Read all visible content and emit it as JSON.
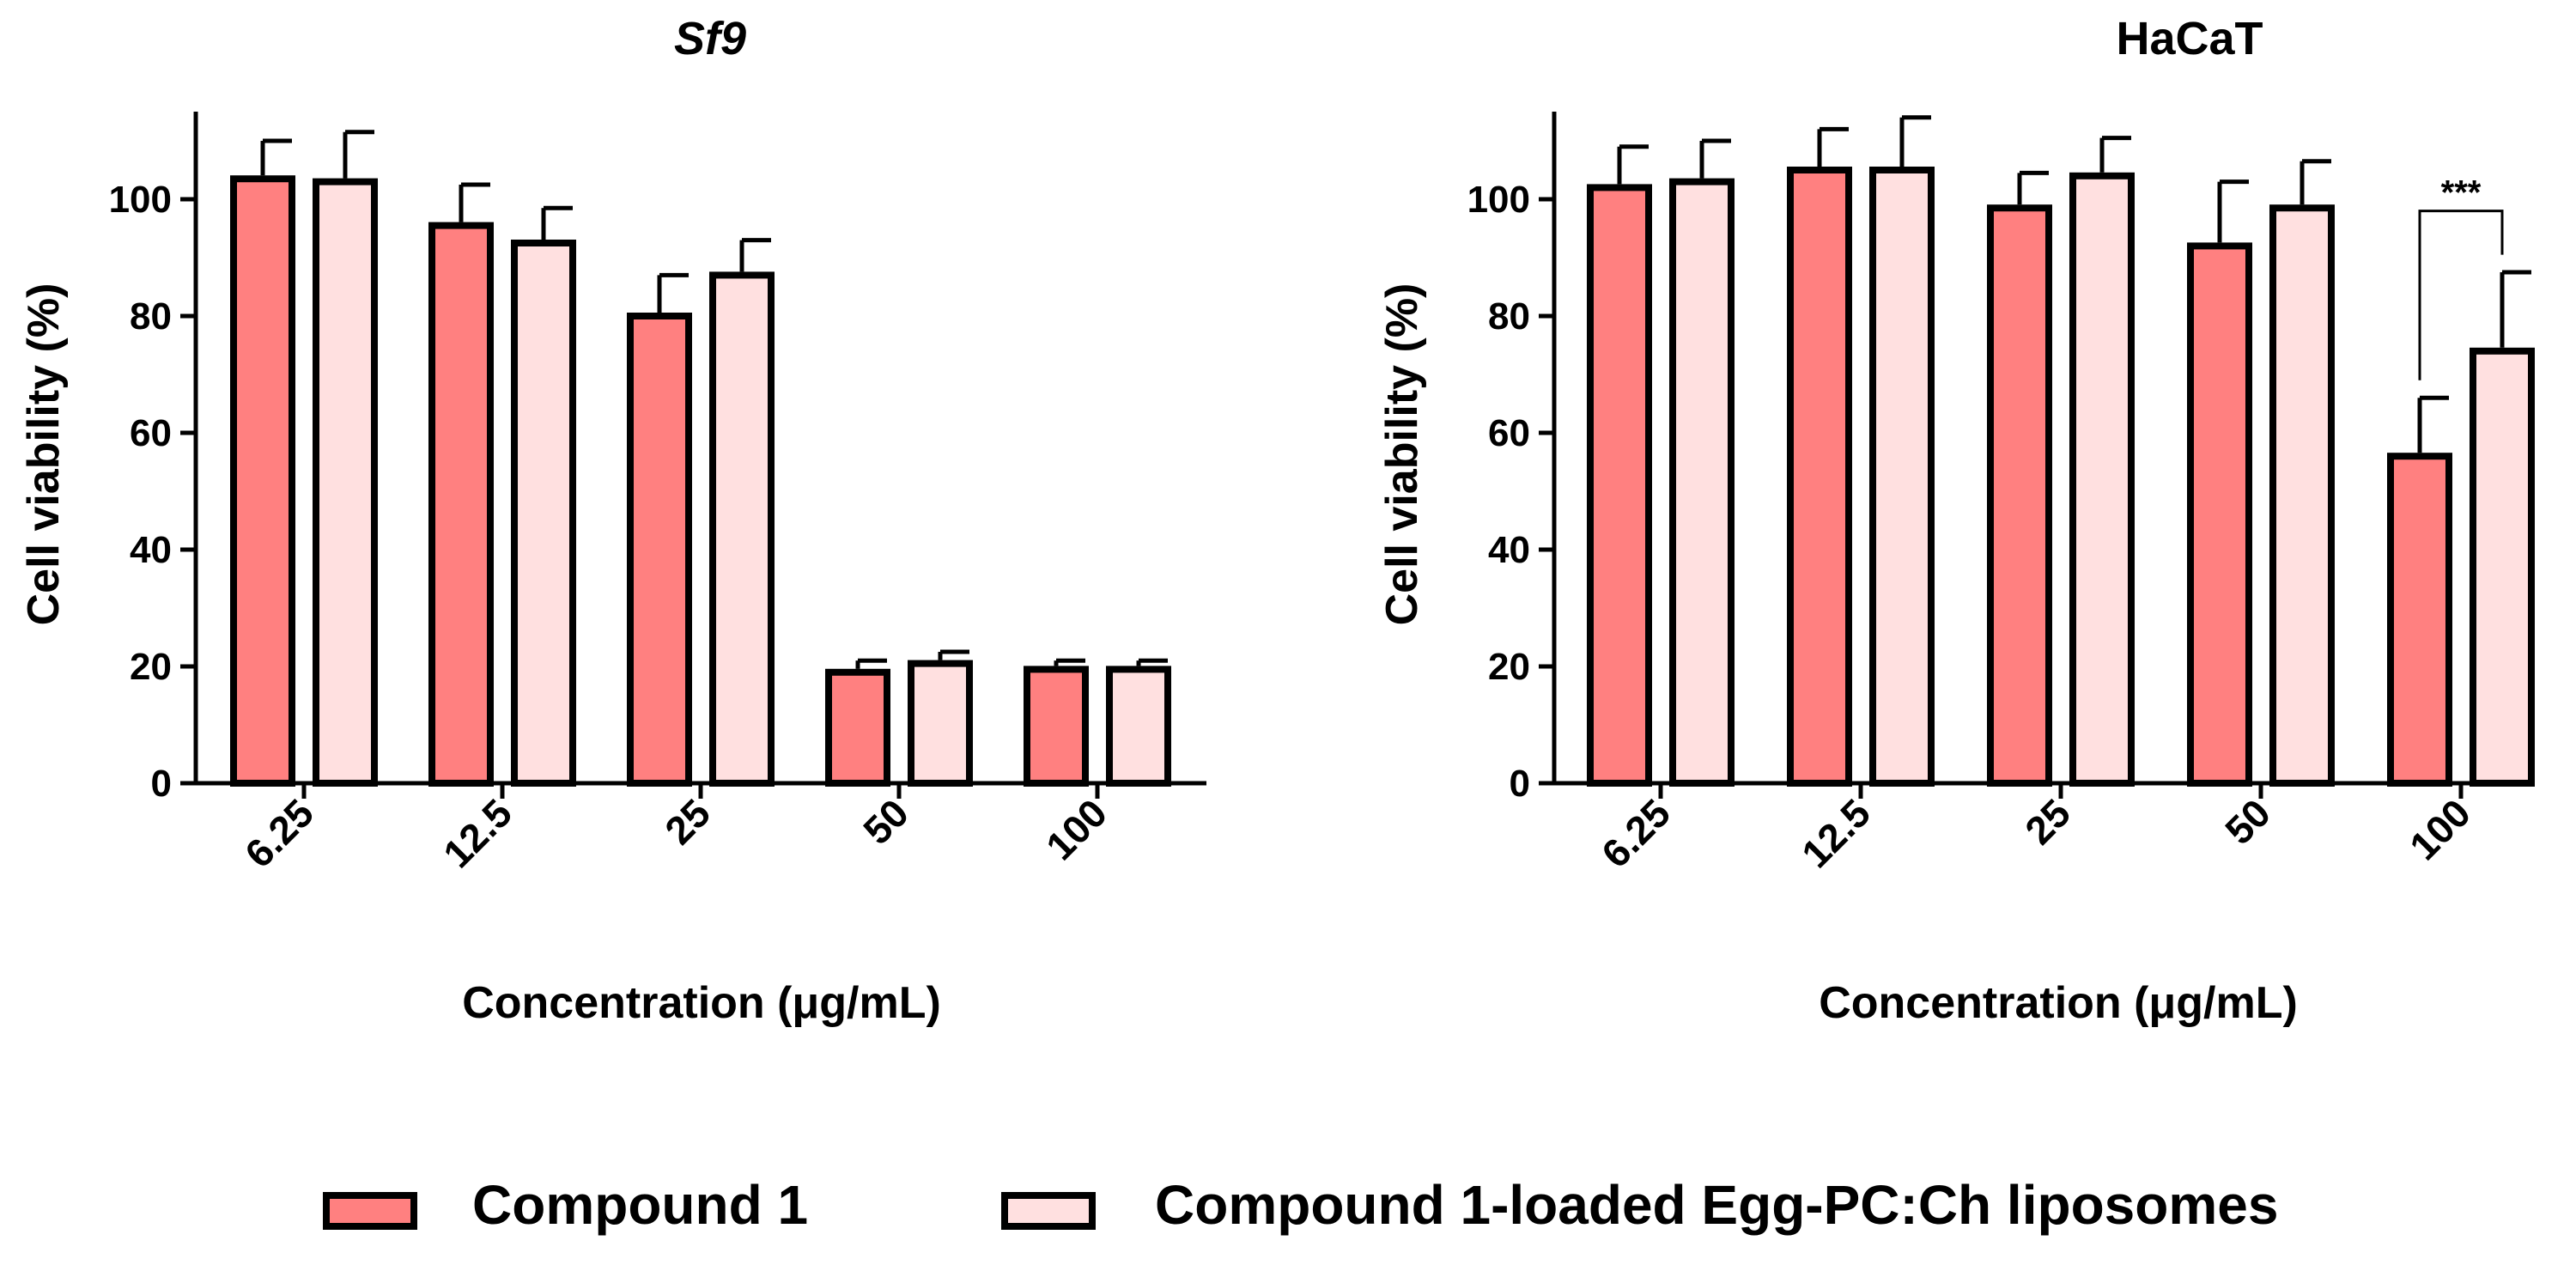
{
  "colors": {
    "series1": "#ff8080",
    "series2": "#ffe0e0",
    "axis": "#000000"
  },
  "legend": [
    {
      "name": "Compound 1",
      "color": "#ff8080"
    },
    {
      "name": "Compound 1-loaded Egg-PC:Ch liposomes",
      "color": "#ffe0e0"
    }
  ],
  "chart_data": [
    {
      "type": "bar",
      "title": "Sf9",
      "title_italic": true,
      "xlabel": "Concentration (μg/mL)",
      "ylabel": "Cell viability (%)",
      "categories": [
        "6.25",
        "12.5",
        "25",
        "50",
        "100"
      ],
      "ylim": [
        0,
        115
      ],
      "yticks": [
        "0",
        "20",
        "40",
        "60",
        "80",
        "100"
      ],
      "series": [
        {
          "name": "Compound 1",
          "values": [
            103.5,
            95.5,
            80,
            19,
            19.5
          ],
          "errors": [
            6.5,
            7,
            7,
            2,
            1.5
          ]
        },
        {
          "name": "Compound 1-loaded Egg-PC:Ch liposomes",
          "values": [
            103,
            92.5,
            87,
            20.5,
            19.5
          ],
          "errors": [
            8.5,
            6,
            6,
            2,
            1.5
          ]
        }
      ],
      "annotations": []
    },
    {
      "type": "bar",
      "title": "HaCaT",
      "title_italic": false,
      "xlabel": "Concentration (μg/mL)",
      "ylabel": "Cell viability (%)",
      "categories": [
        "6.25",
        "12.5",
        "25",
        "50",
        "100"
      ],
      "ylim": [
        0,
        115
      ],
      "yticks": [
        "0",
        "20",
        "40",
        "60",
        "80",
        "100"
      ],
      "series": [
        {
          "name": "Compound 1",
          "values": [
            102,
            105,
            98.5,
            92,
            56
          ],
          "errors": [
            7,
            7,
            6,
            11,
            10
          ]
        },
        {
          "name": "Compound 1-loaded Egg-PC:Ch liposomes",
          "values": [
            103,
            105,
            104,
            98.5,
            74
          ],
          "errors": [
            7,
            9,
            6.5,
            8,
            13.5
          ]
        }
      ],
      "annotations": [
        {
          "text": "***",
          "category": "100",
          "y": 98
        }
      ]
    }
  ]
}
